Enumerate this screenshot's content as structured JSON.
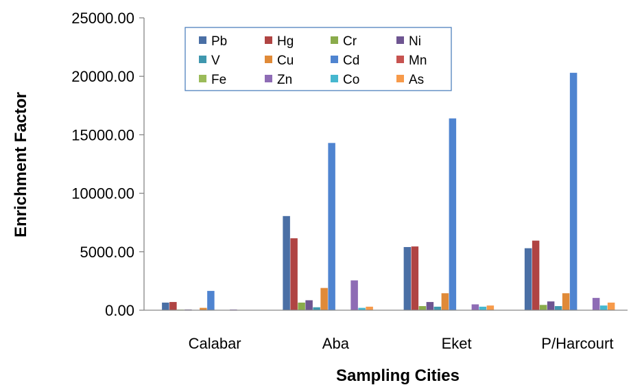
{
  "chart_data": {
    "type": "bar",
    "title": "",
    "xlabel": "Sampling Cities",
    "ylabel": "Enrichment Factor",
    "ylim": [
      0,
      25000
    ],
    "yticks": [
      "0.00",
      "5000.00",
      "10000.00",
      "15000.00",
      "20000.00",
      "25000.00"
    ],
    "grid": false,
    "legend_position": "top-left",
    "categories": [
      "Calabar",
      "Aba",
      "Eket",
      "P/Harcourt"
    ],
    "series": [
      {
        "name": "Pb",
        "color": "#4a6fa5",
        "values": [
          650,
          8050,
          5400,
          5300
        ]
      },
      {
        "name": "Hg",
        "color": "#b04443",
        "values": [
          700,
          6150,
          5450,
          5950
        ]
      },
      {
        "name": "Cr",
        "color": "#8aab4b",
        "values": [
          50,
          650,
          350,
          450
        ]
      },
      {
        "name": "Ni",
        "color": "#6e5591",
        "values": [
          60,
          850,
          700,
          750
        ]
      },
      {
        "name": "V",
        "color": "#3f97ae",
        "values": [
          30,
          250,
          300,
          350
        ]
      },
      {
        "name": "Cu",
        "color": "#e08a38",
        "values": [
          200,
          1900,
          1450,
          1450
        ]
      },
      {
        "name": "Cd",
        "color": "#4f84d0",
        "values": [
          1650,
          14300,
          16400,
          20300
        ]
      },
      {
        "name": "Mn",
        "color": "#c75350",
        "values": [
          0,
          0,
          0,
          0
        ]
      },
      {
        "name": "Fe",
        "color": "#9bbb59",
        "values": [
          0,
          0,
          0,
          0
        ]
      },
      {
        "name": "Zn",
        "color": "#8e6cb5",
        "values": [
          60,
          2550,
          500,
          1050
        ]
      },
      {
        "name": "Co",
        "color": "#46b7cf",
        "values": [
          20,
          200,
          300,
          400
        ]
      },
      {
        "name": "As",
        "color": "#f79a4a",
        "values": [
          10,
          300,
          400,
          650
        ]
      }
    ]
  }
}
